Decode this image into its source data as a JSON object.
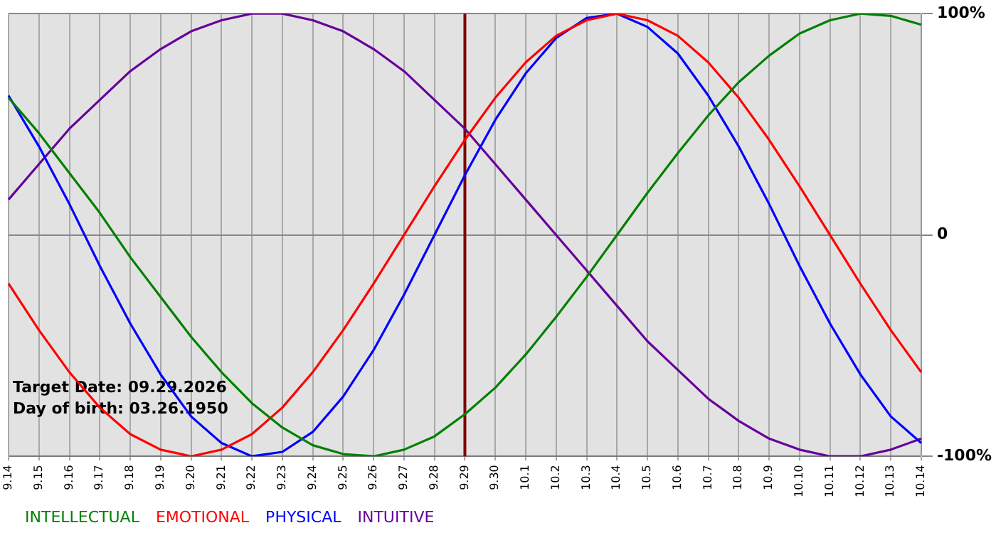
{
  "chart_data": {
    "type": "line",
    "categories": [
      "9.14",
      "9.15",
      "9.16",
      "9.17",
      "9.18",
      "9.19",
      "9.20",
      "9.21",
      "9.22",
      "9.23",
      "9.24",
      "9.25",
      "9.26",
      "9.27",
      "9.28",
      "9.29",
      "9.30",
      "10.1",
      "10.2",
      "10.3",
      "10.4",
      "10.5",
      "10.6",
      "10.7",
      "10.8",
      "10.9",
      "10.10",
      "10.11",
      "10.12",
      "10.13",
      "10.14"
    ],
    "series": [
      {
        "name": "INTELLECTUAL",
        "color": "#008000",
        "values": [
          62,
          46,
          28,
          10,
          -10,
          -28,
          -46,
          -62,
          -76,
          -87,
          -95,
          -99,
          -100,
          -97,
          -91,
          -81,
          -69,
          -54,
          -37,
          -19,
          0,
          19,
          37,
          54,
          69,
          81,
          91,
          97,
          100,
          99,
          95
        ]
      },
      {
        "name": "EMOTIONAL",
        "color": "#ff0000",
        "values": [
          -22,
          -43,
          -62,
          -78,
          -90,
          -97,
          -100,
          -97,
          -90,
          -78,
          -62,
          -43,
          -22,
          0,
          22,
          43,
          62,
          78,
          90,
          97,
          100,
          97,
          90,
          78,
          62,
          43,
          22,
          0,
          -22,
          -43,
          -62
        ]
      },
      {
        "name": "PHYSICAL",
        "color": "#0000ff",
        "values": [
          63,
          40,
          14,
          -14,
          -40,
          -63,
          -82,
          -94,
          -100,
          -98,
          -89,
          -73,
          -52,
          -27,
          0,
          27,
          52,
          73,
          89,
          98,
          100,
          94,
          82,
          63,
          40,
          14,
          -14,
          -40,
          -63,
          -82,
          -94
        ]
      },
      {
        "name": "INTUITIVE",
        "color": "#660099",
        "values": [
          16,
          32,
          48,
          61,
          74,
          84,
          92,
          97,
          100,
          100,
          97,
          92,
          84,
          74,
          61,
          48,
          32,
          16,
          0,
          -16,
          -32,
          -48,
          -61,
          -74,
          -84,
          -92,
          -97,
          -100,
          -100,
          -97,
          -92
        ]
      }
    ],
    "ylim": [
      -100,
      100
    ],
    "yticks": [
      {
        "value": -100,
        "label": "-100%"
      },
      0,
      {
        "value": 100,
        "label": "100%"
      }
    ],
    "grid": true,
    "legend": "bottom left",
    "marker": "none",
    "line_style": "solid",
    "ref_lines": [
      {
        "axis": "x",
        "value": "9.29",
        "color": "#800000"
      }
    ],
    "annotations": [
      "Target Date: 09.29.2026",
      "Day of birth: 03.26.1950"
    ]
  }
}
